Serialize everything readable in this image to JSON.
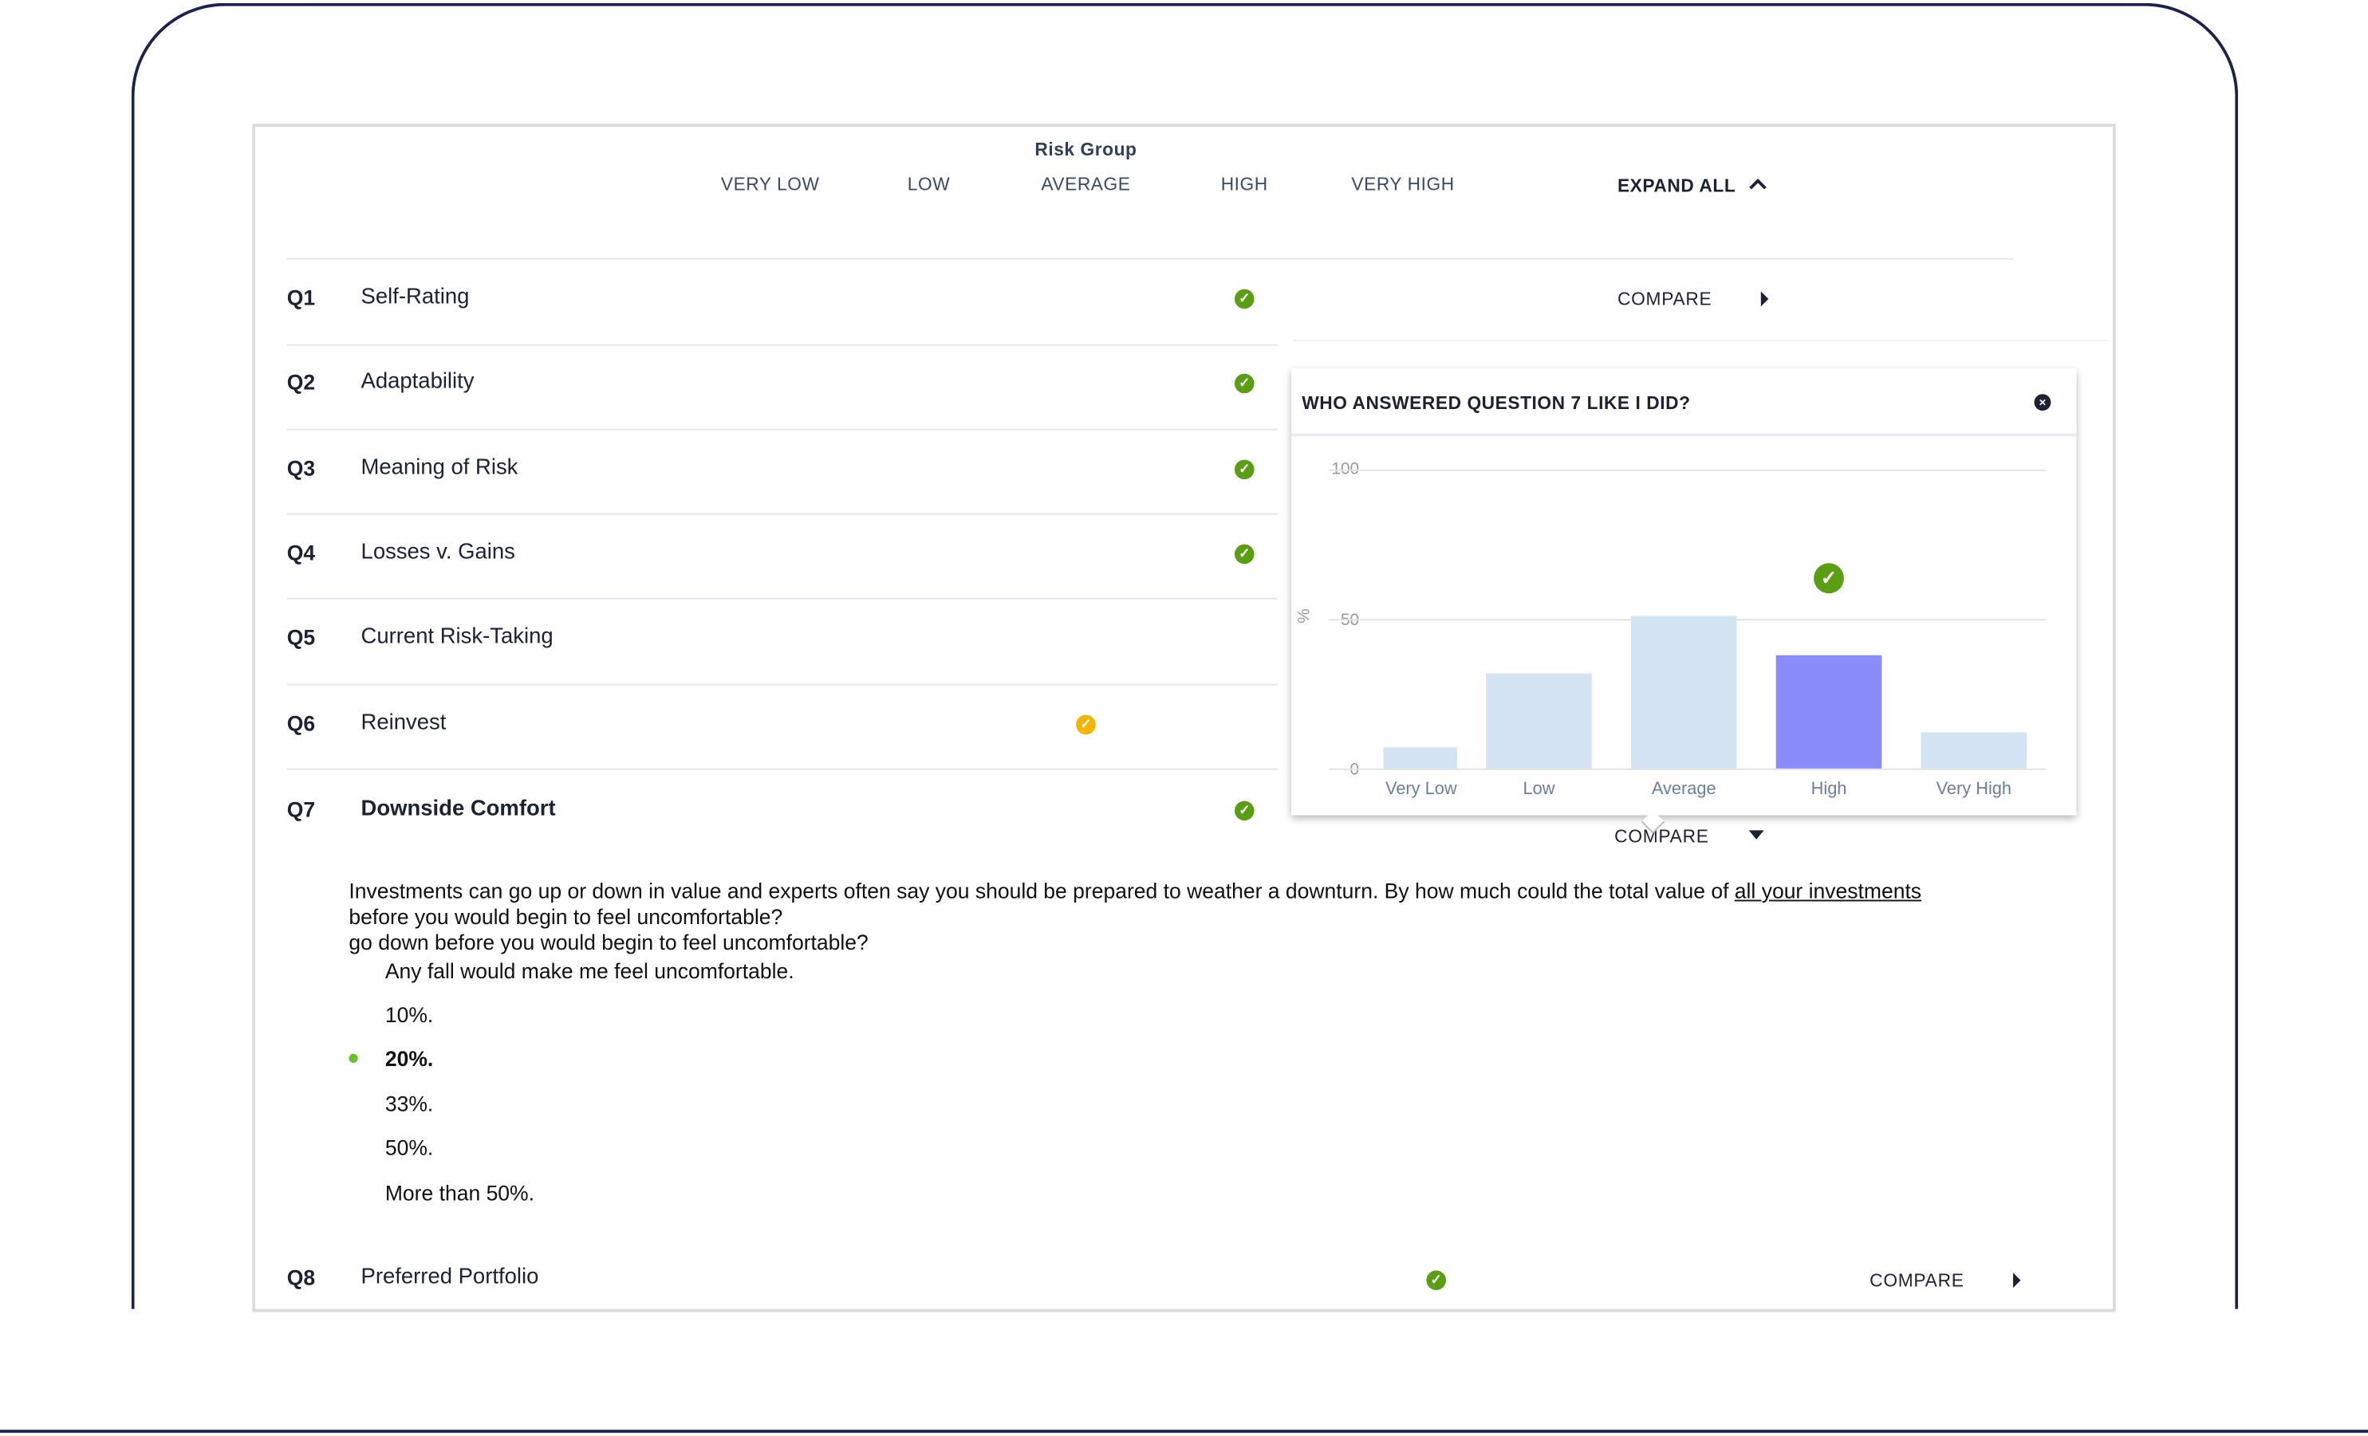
{
  "header": {
    "risk_group_label": "Risk Group",
    "columns": [
      "VERY LOW",
      "LOW",
      "AVERAGE",
      "HIGH",
      "VERY HIGH"
    ],
    "expand_all_label": "EXPAND ALL"
  },
  "questions": [
    {
      "num": "Q1",
      "title": "Self-Rating",
      "answer_group": "HIGH",
      "status": "check-green",
      "compare": "COMPARE"
    },
    {
      "num": "Q2",
      "title": "Adaptability",
      "answer_group": "HIGH",
      "status": "check-green"
    },
    {
      "num": "Q3",
      "title": "Meaning of Risk",
      "answer_group": "HIGH",
      "status": "check-green"
    },
    {
      "num": "Q4",
      "title": "Losses v. Gains",
      "answer_group": "HIGH",
      "status": "check-green"
    },
    {
      "num": "Q5",
      "title": "Current Risk-Taking"
    },
    {
      "num": "Q6",
      "title": "Reinvest",
      "answer_group": "AVERAGE",
      "status": "check-yellow"
    },
    {
      "num": "Q7",
      "title": "Downside Comfort",
      "answer_group": "HIGH",
      "status": "check-green",
      "compare": "COMPARE",
      "expanded": true
    },
    {
      "num": "Q8",
      "title": "Preferred Portfolio",
      "status": "check-green",
      "compare": "COMPARE"
    }
  ],
  "q7_detail": {
    "text_part1": "Investments can go up or down in value and experts often say you should be prepared to weather a downturn. By how much could the total value of ",
    "text_link": "all your investments",
    "text_part2": "before you would begin to feel uncomfortable?",
    "text_part3": "go down before you would begin to feel uncomfortable?",
    "options": [
      "Any fall would make me feel uncomfortable.",
      "10%.",
      "20%.",
      "33%.",
      "50%.",
      "More than 50%."
    ],
    "selected_index": 2
  },
  "popup": {
    "title": "WHO ANSWERED QUESTION 7 LIKE I DID?",
    "close_icon": "close-circle-icon"
  },
  "chart_data": {
    "type": "bar",
    "categories": [
      "Very Low",
      "Low",
      "Average",
      "High",
      "Very High"
    ],
    "values": [
      7,
      32,
      51,
      38,
      12
    ],
    "highlight": "High",
    "ylabel": "%",
    "ylim": [
      0,
      100
    ],
    "yticks": [
      "0",
      "50",
      "100"
    ],
    "grid": true,
    "colors": {
      "default": "#d4e4f3",
      "highlight": "#8b8cfb",
      "check": "#5a9e12"
    }
  },
  "colors": {
    "green": "#5a9e12",
    "yellow": "#f4b400",
    "navy": "#1b2250"
  }
}
